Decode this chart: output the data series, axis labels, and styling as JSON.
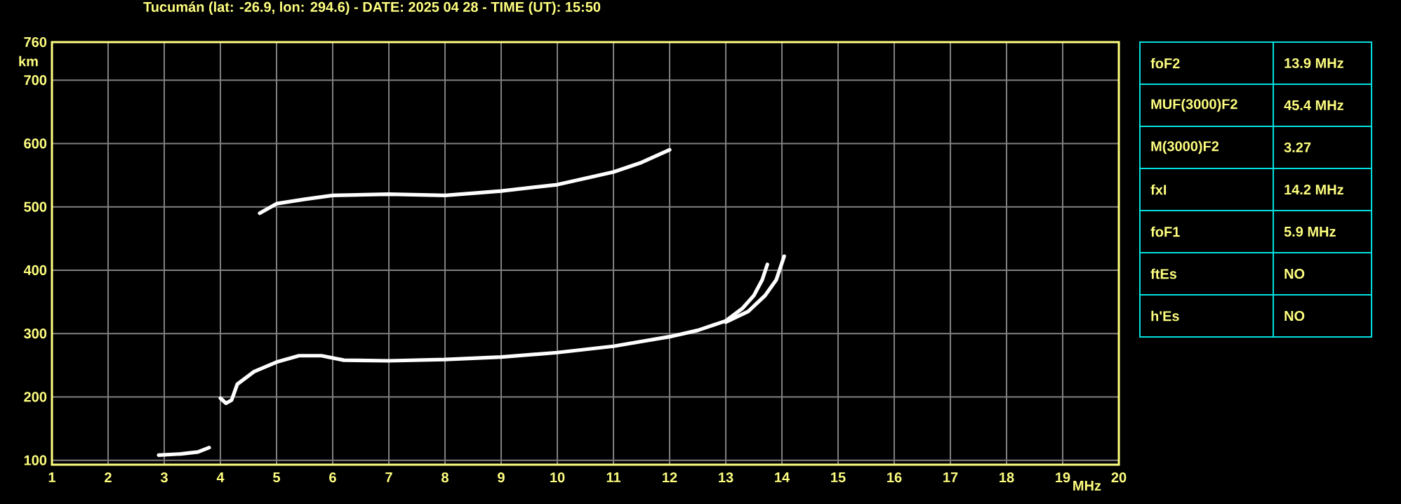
{
  "chart_data": [
    {
      "type": "line",
      "title": "Tucumán (lat: -26.9, lon: 294.6) - DATE: 2025 04 28 - TIME (UT): 15:50",
      "xlabel": "MHz",
      "ylabel": "km",
      "xlim": [
        1,
        20
      ],
      "ylim": [
        93,
        760
      ],
      "xticks": [
        1,
        2,
        3,
        4,
        5,
        6,
        7,
        8,
        9,
        10,
        11,
        12,
        13,
        14,
        15,
        16,
        17,
        18,
        19,
        20
      ],
      "yticks": [
        100,
        200,
        300,
        400,
        500,
        600,
        700,
        760
      ],
      "grid": true,
      "marker": "none",
      "series": [
        {
          "color": "#ffffff",
          "x": [
            2.9,
            3.3,
            3.6,
            3.8
          ],
          "values": [
            108,
            110,
            113,
            120
          ]
        },
        {
          "color": "#ffffff",
          "x": [
            4.0,
            4.1,
            4.2,
            4.3,
            4.6,
            5.0,
            5.4,
            5.8,
            6.2,
            7,
            8,
            9,
            10,
            11,
            12,
            12.5,
            13,
            13.3,
            13.5,
            13.65,
            13.74
          ],
          "values": [
            198,
            190,
            195,
            220,
            240,
            255,
            265,
            265,
            258,
            257,
            259,
            263,
            270,
            280,
            295,
            305,
            320,
            340,
            360,
            385,
            409
          ]
        },
        {
          "color": "#ffffff",
          "x": [
            13.0,
            13.4,
            13.7,
            13.9,
            14.04
          ],
          "values": [
            318,
            335,
            360,
            385,
            422
          ]
        },
        {
          "color": "#ffffff",
          "x": [
            4.7,
            5.0,
            5.5,
            6,
            7,
            8,
            9,
            10,
            11,
            11.5,
            12
          ],
          "values": [
            490,
            505,
            512,
            518,
            520,
            518,
            525,
            535,
            555,
            570,
            590
          ]
        }
      ]
    },
    {
      "type": "other",
      "annotations": [
        "foF2",
        "13.9 MHz",
        "MUF(3000)F2",
        "45.4 MHz",
        "M(3000)F2",
        "3.27",
        "fxI",
        "14.2 MHz",
        "foF1",
        "5.9 MHz",
        "ftEs",
        "NO",
        "h'Es",
        "NO"
      ]
    }
  ]
}
